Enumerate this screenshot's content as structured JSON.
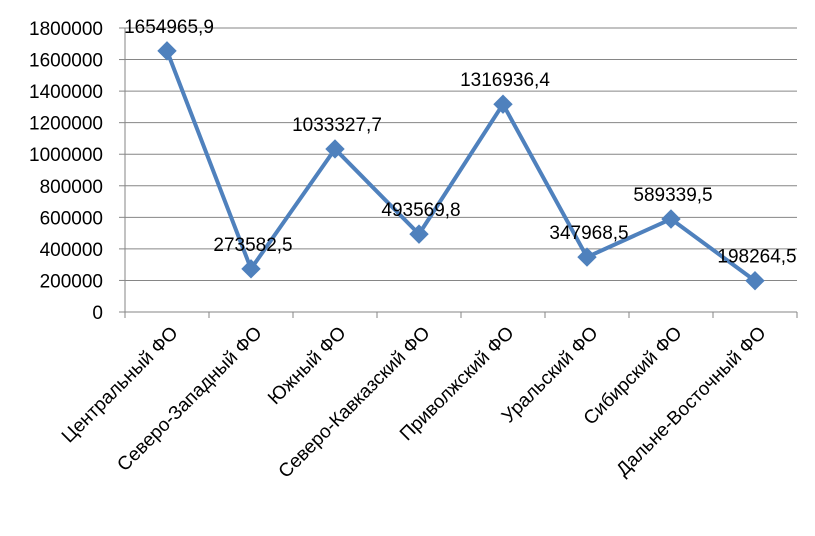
{
  "chart_data": {
    "type": "line",
    "title": "",
    "xlabel": "",
    "ylabel": "",
    "categories": [
      "Центральный ФО",
      "Северо-Западный ФО",
      "Южный ФО",
      "Северо-Кавказский ФО",
      "Приволжский ФО",
      "Уральский ФО",
      "Сибирский ФО",
      "Дальне-Восточный ФО"
    ],
    "series": [
      {
        "values": [
          1654965.9,
          273582.5,
          1033327.7,
          493569.8,
          1316936.4,
          347968.5,
          589339.5,
          198264.5
        ],
        "data_labels": [
          "1654965,9",
          "273582,5",
          "1033327,7",
          "493569,8",
          "1316936,4",
          "347968,5",
          "589339,5",
          "198264,5"
        ]
      }
    ],
    "ylim": [
      0,
      1800000
    ],
    "yticks": [
      0,
      200000,
      400000,
      600000,
      800000,
      1000000,
      1200000,
      1400000,
      1600000,
      1800000
    ],
    "ytick_labels": [
      "0",
      "200000",
      "400000",
      "600000",
      "800000",
      "1000000",
      "1200000",
      "1400000",
      "1600000",
      "1800000"
    ],
    "grid": true,
    "legend": "none",
    "colors": {
      "line": "#4f81bd",
      "marker": "#4f81bd",
      "grid": "#868686",
      "axis": "#868686"
    }
  }
}
